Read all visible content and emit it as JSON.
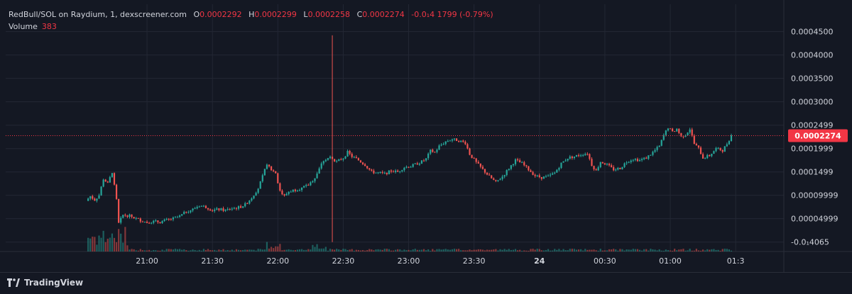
{
  "legend": {
    "symbol": "RedBull/SOL on Raydium, 1, dexscreener.com",
    "open_label": "O",
    "open": "0.0002292",
    "high_label": "H",
    "high": "0.0002299",
    "low_label": "L",
    "low": "0.0002258",
    "close_label": "C",
    "close": "0.0002274",
    "change": "-0.0₁4 1799 (-0.79%)",
    "volume_label": "Volume",
    "volume": "383"
  },
  "branding": {
    "name": "TradingView",
    "logo_icon": "tradingview-logo-icon"
  },
  "colors": {
    "up": "#26a69a",
    "down": "#ef5350",
    "background": "#141823",
    "grid": "#232734",
    "axis_text": "#d1d4dc",
    "last_price": "#f23645"
  },
  "chart_data": {
    "type": "candlestick",
    "title": "RedBull/SOL on Raydium, 1, dexscreener.com",
    "interval": "1 minute",
    "y_ticks": [
      {
        "value": 0.00045,
        "label": "0.0004500"
      },
      {
        "value": 0.0004,
        "label": "0.0004000"
      },
      {
        "value": 0.00035,
        "label": "0.0003500"
      },
      {
        "value": 0.0003,
        "label": "0.0003000"
      },
      {
        "value": 0.0002499,
        "label": "0.0002499"
      },
      {
        "value": 0.0001999,
        "label": "0.0001999"
      },
      {
        "value": 0.0001499,
        "label": "0.0001499"
      },
      {
        "value": 9.999e-05,
        "label": "0.00009999"
      },
      {
        "value": 4.999e-05,
        "label": "0.00004999"
      },
      {
        "value": -1e-07,
        "label": "-0.0₁4065"
      }
    ],
    "ylim": [
      -5e-07,
      0.00046
    ],
    "x_ticks": [
      "21:00",
      "21:30",
      "22:00",
      "22:30",
      "23:00",
      "23:30",
      "24",
      "00:30",
      "01:00",
      "01:3"
    ],
    "x_tick_minutes": [
      0,
      30,
      60,
      90,
      120,
      150,
      180,
      210,
      240,
      270
    ],
    "x_range_minutes": [
      -29,
      268
    ],
    "last_price": {
      "value": 0.0002274,
      "label": "0.0002274"
    },
    "grid": true,
    "price_path": [
      [
        -28,
        8.8e-05
      ],
      [
        -26,
        9.8e-05
      ],
      [
        -24,
        9e-05
      ],
      [
        -22,
        0.0001
      ],
      [
        -20,
        0.000135
      ],
      [
        -18,
        0.000125
      ],
      [
        -16,
        0.00015
      ],
      [
        -14,
        9e-05
      ],
      [
        -13,
        4e-05
      ],
      [
        -11,
        5.8e-05
      ],
      [
        -8,
        5.6e-05
      ],
      [
        -5,
        5e-05
      ],
      [
        -2,
        4.5e-05
      ],
      [
        0,
        4.2e-05
      ],
      [
        3,
        4.4e-05
      ],
      [
        6,
        4.3e-05
      ],
      [
        9,
        4.7e-05
      ],
      [
        12,
        5e-05
      ],
      [
        15,
        5.5e-05
      ],
      [
        18,
        6.5e-05
      ],
      [
        21,
        7e-05
      ],
      [
        24,
        7.8e-05
      ],
      [
        27,
        7.5e-05
      ],
      [
        30,
        6.8e-05
      ],
      [
        33,
        7e-05
      ],
      [
        36,
        6.8e-05
      ],
      [
        39,
        7.2e-05
      ],
      [
        42,
        7.4e-05
      ],
      [
        45,
        8e-05
      ],
      [
        48,
        9.5e-05
      ],
      [
        51,
        0.000115
      ],
      [
        53,
        0.00014
      ],
      [
        55,
        0.000168
      ],
      [
        57,
        0.000155
      ],
      [
        59,
        0.000148
      ],
      [
        61,
        0.000108
      ],
      [
        63,
        9.8e-05
      ],
      [
        65,
        0.000108
      ],
      [
        68,
        0.000112
      ],
      [
        71,
        0.000115
      ],
      [
        74,
        0.000122
      ],
      [
        77,
        0.000138
      ],
      [
        79,
        0.000158
      ],
      [
        81,
        0.000175
      ],
      [
        84,
        0.000182
      ],
      [
        87,
        0.000172
      ],
      [
        90,
        0.00018
      ],
      [
        92,
        0.000192
      ],
      [
        94,
        0.000183
      ],
      [
        97,
        0.000175
      ],
      [
        100,
        0.000165
      ],
      [
        103,
        0.00015
      ],
      [
        106,
        0.000148
      ],
      [
        109,
        0.000146
      ],
      [
        112,
        0.000152
      ],
      [
        115,
        0.00015
      ],
      [
        118,
        0.00016
      ],
      [
        121,
        0.000162
      ],
      [
        124,
        0.000168
      ],
      [
        126,
        0.000172
      ],
      [
        128,
        0.000178
      ],
      [
        130,
        0.000195
      ],
      [
        132,
        0.000192
      ],
      [
        134,
        0.000205
      ],
      [
        137,
        0.000215
      ],
      [
        140,
        0.00022
      ],
      [
        143,
        0.000217
      ],
      [
        146,
        0.000212
      ],
      [
        148,
        0.000188
      ],
      [
        151,
        0.00017
      ],
      [
        154,
        0.000155
      ],
      [
        157,
        0.00014
      ],
      [
        160,
        0.000128
      ],
      [
        163,
        0.00014
      ],
      [
        166,
        0.000158
      ],
      [
        169,
        0.000175
      ],
      [
        172,
        0.000168
      ],
      [
        175,
        0.000155
      ],
      [
        178,
        0.000142
      ],
      [
        181,
        0.000138
      ],
      [
        184,
        0.00014
      ],
      [
        187,
        0.000148
      ],
      [
        190,
        0.000168
      ],
      [
        193,
        0.00018
      ],
      [
        196,
        0.000183
      ],
      [
        199,
        0.000187
      ],
      [
        202,
        0.00019
      ],
      [
        204,
        0.000165
      ],
      [
        206,
        0.000152
      ],
      [
        208,
        0.000172
      ],
      [
        211,
        0.000165
      ],
      [
        214,
        0.000155
      ],
      [
        217,
        0.000158
      ],
      [
        220,
        0.000172
      ],
      [
        223,
        0.000178
      ],
      [
        226,
        0.000175
      ],
      [
        229,
        0.00018
      ],
      [
        232,
        0.000192
      ],
      [
        235,
        0.000205
      ],
      [
        237,
        0.000228
      ],
      [
        239,
        0.000245
      ],
      [
        241,
        0.000235
      ],
      [
        243,
        0.000242
      ],
      [
        245,
        0.000225
      ],
      [
        247,
        0.00023
      ],
      [
        249,
        0.000242
      ],
      [
        251,
        0.00021
      ],
      [
        253,
        0.0002
      ],
      [
        255,
        0.00018
      ],
      [
        258,
        0.000185
      ],
      [
        261,
        0.0002
      ],
      [
        264,
        0.000196
      ],
      [
        266,
        0.00021
      ],
      [
        268,
        0.000228
      ]
    ],
    "spike": {
      "minute": 85,
      "high": 0.000442,
      "low": -1e-07
    }
  }
}
